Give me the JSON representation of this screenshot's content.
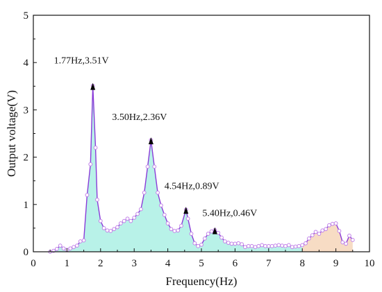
{
  "chart_data": {
    "type": "area",
    "title": "",
    "xlabel": "Frequency(Hz)",
    "ylabel": "Output voltage(V)",
    "xlim": [
      0,
      10
    ],
    "ylim": [
      0,
      5
    ],
    "xticks": [
      "0",
      "1",
      "2",
      "3",
      "4",
      "5",
      "6",
      "7",
      "8",
      "9",
      "10"
    ],
    "yticks": [
      "0",
      "1",
      "2",
      "3",
      "4",
      "5"
    ],
    "grid": false,
    "legend": "none",
    "colors": {
      "line": "#8a3bd8",
      "marker_edge": "#c080e8",
      "fill_main": "#b8f2e8",
      "fill_tail": "#f7dcc4",
      "fill_tail_from_x": 8.0
    },
    "series": [
      {
        "x": [
          0.5,
          0.6,
          0.7,
          0.8,
          0.9,
          1.0,
          1.1,
          1.2,
          1.3,
          1.4,
          1.5,
          1.6,
          1.7,
          1.77,
          1.85,
          1.9,
          2.0,
          2.1,
          2.2,
          2.3,
          2.4,
          2.5,
          2.6,
          2.7,
          2.8,
          2.9,
          3.0,
          3.1,
          3.2,
          3.3,
          3.4,
          3.5,
          3.6,
          3.7,
          3.8,
          3.9,
          4.0,
          4.1,
          4.2,
          4.3,
          4.4,
          4.54,
          4.6,
          4.7,
          4.8,
          4.9,
          5.0,
          5.1,
          5.2,
          5.3,
          5.4,
          5.5,
          5.6,
          5.7,
          5.8,
          5.9,
          6.0,
          6.1,
          6.2,
          6.3,
          6.4,
          6.5,
          6.6,
          6.7,
          6.8,
          6.9,
          7.0,
          7.1,
          7.2,
          7.3,
          7.4,
          7.5,
          7.6,
          7.7,
          7.8,
          7.9,
          8.0,
          8.1,
          8.2,
          8.3,
          8.4,
          8.5,
          8.6,
          8.7,
          8.8,
          8.9,
          9.0,
          9.1,
          9.2,
          9.3,
          9.4,
          9.5
        ],
        "y": [
          0.0,
          0.02,
          0.06,
          0.13,
          0.07,
          0.04,
          0.07,
          0.1,
          0.13,
          0.22,
          0.24,
          1.2,
          1.85,
          3.51,
          2.2,
          1.1,
          0.65,
          0.5,
          0.45,
          0.44,
          0.48,
          0.52,
          0.6,
          0.65,
          0.7,
          0.65,
          0.72,
          0.8,
          0.9,
          1.25,
          1.8,
          2.36,
          1.8,
          1.25,
          0.98,
          0.78,
          0.6,
          0.48,
          0.44,
          0.45,
          0.55,
          0.89,
          0.7,
          0.38,
          0.18,
          0.12,
          0.15,
          0.28,
          0.38,
          0.43,
          0.46,
          0.4,
          0.3,
          0.22,
          0.19,
          0.17,
          0.17,
          0.18,
          0.16,
          0.1,
          0.12,
          0.12,
          0.1,
          0.12,
          0.14,
          0.12,
          0.12,
          0.12,
          0.13,
          0.14,
          0.13,
          0.12,
          0.14,
          0.1,
          0.11,
          0.12,
          0.14,
          0.18,
          0.28,
          0.35,
          0.42,
          0.38,
          0.45,
          0.48,
          0.56,
          0.59,
          0.6,
          0.44,
          0.2,
          0.17,
          0.34,
          0.25
        ]
      }
    ],
    "annotations": [
      {
        "text": "1.77Hz,3.51V",
        "x": 1.77,
        "y": 3.51
      },
      {
        "text": "3.50Hz,2.36V",
        "x": 3.5,
        "y": 2.36
      },
      {
        "text": "4.54Hz,0.89V",
        "x": 4.54,
        "y": 0.89
      },
      {
        "text": "5.40Hz,0.46V",
        "x": 5.4,
        "y": 0.46
      }
    ]
  }
}
